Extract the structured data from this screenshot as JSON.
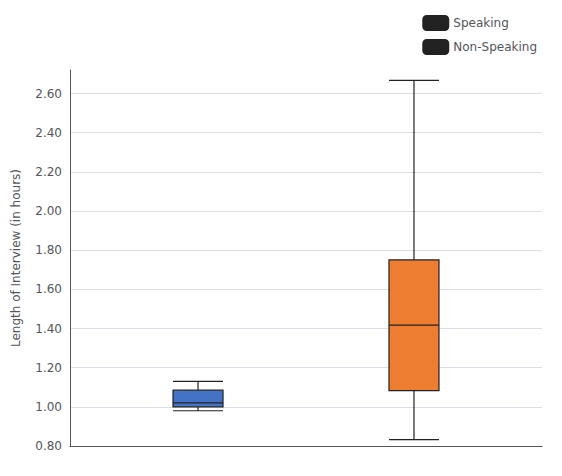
{
  "chart_data": {
    "type": "boxplot",
    "ylabel": "Length of Interview (in hours)",
    "series": [
      {
        "name": "Speaking",
        "color": "#4472C4",
        "values": [
          0.98,
          1.0,
          1.02,
          1.085,
          1.13
        ]
      },
      {
        "name": "Non-Speaking",
        "color": "#ED7D31",
        "values": [
          0.833,
          1.083,
          1.417,
          1.75,
          2.667
        ]
      }
    ],
    "ylim": [
      0.8,
      2.72
    ],
    "yticks": [
      {
        "value": 0.8,
        "label": "0.80"
      },
      {
        "value": 1.0,
        "label": "1.00"
      },
      {
        "value": 1.2,
        "label": "1.20"
      },
      {
        "value": 1.4,
        "label": "1.40"
      },
      {
        "value": 1.6,
        "label": "1.60"
      },
      {
        "value": 1.8,
        "label": "1.80"
      },
      {
        "value": 2.0,
        "label": "2.00"
      },
      {
        "value": 2.2,
        "label": "2.20"
      },
      {
        "value": 2.4,
        "label": "2.40"
      },
      {
        "value": 2.6,
        "label": "2.60"
      }
    ],
    "grid": true,
    "legend": "upper right",
    "tick_labels": "y"
  }
}
